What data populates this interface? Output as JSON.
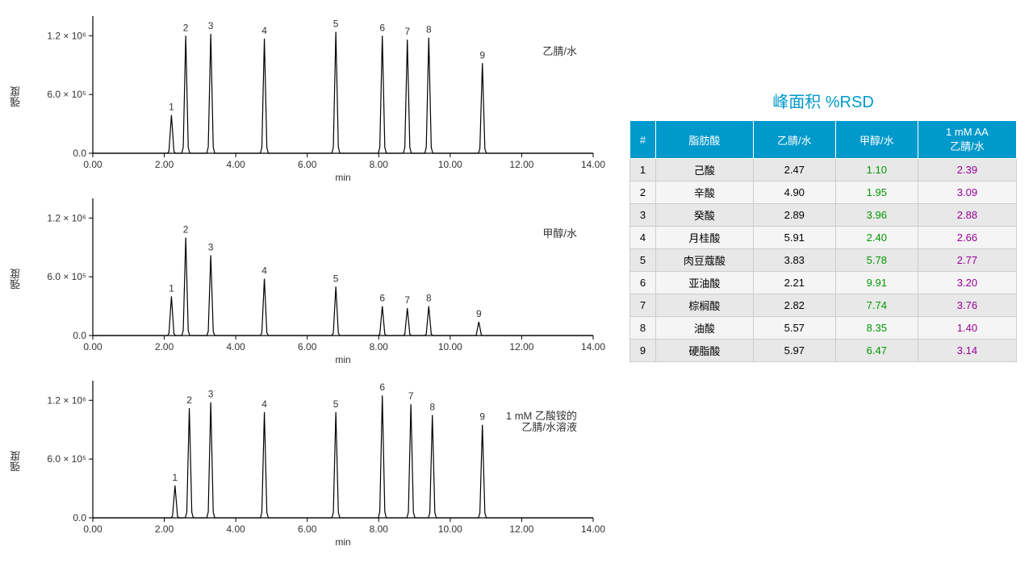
{
  "charts": [
    {
      "label_inside": "乙腈/水",
      "peaks": [
        {
          "x": 2.2,
          "h": 0.39
        },
        {
          "x": 2.6,
          "h": 1.2
        },
        {
          "x": 3.3,
          "h": 1.22
        },
        {
          "x": 4.8,
          "h": 1.17
        },
        {
          "x": 6.8,
          "h": 1.24
        },
        {
          "x": 8.1,
          "h": 1.2
        },
        {
          "x": 8.8,
          "h": 1.16
        },
        {
          "x": 9.4,
          "h": 1.18
        },
        {
          "x": 10.9,
          "h": 0.92
        }
      ]
    },
    {
      "label_inside": "甲醇/水",
      "peaks": [
        {
          "x": 2.2,
          "h": 0.4
        },
        {
          "x": 2.6,
          "h": 1.0
        },
        {
          "x": 3.3,
          "h": 0.82
        },
        {
          "x": 4.8,
          "h": 0.58
        },
        {
          "x": 6.8,
          "h": 0.5
        },
        {
          "x": 8.1,
          "h": 0.3
        },
        {
          "x": 8.8,
          "h": 0.28
        },
        {
          "x": 9.4,
          "h": 0.3
        },
        {
          "x": 10.8,
          "h": 0.14
        }
      ]
    },
    {
      "label_inside": "1 mM 乙酸铵的\n乙腈/水溶液",
      "peaks": [
        {
          "x": 2.3,
          "h": 0.33
        },
        {
          "x": 2.7,
          "h": 1.12
        },
        {
          "x": 3.3,
          "h": 1.18
        },
        {
          "x": 4.8,
          "h": 1.08
        },
        {
          "x": 6.8,
          "h": 1.08
        },
        {
          "x": 8.1,
          "h": 1.25
        },
        {
          "x": 8.9,
          "h": 1.16
        },
        {
          "x": 9.5,
          "h": 1.05
        },
        {
          "x": 10.9,
          "h": 0.95
        }
      ]
    }
  ],
  "chart_common": {
    "ylabel": "强度",
    "xlabel": "min",
    "xlim": [
      0,
      14
    ],
    "ylim": [
      0,
      1.4
    ],
    "xtick_step": 2.0,
    "ytick_vals": [
      0.0,
      0.6,
      1.2
    ],
    "ytick_labels": [
      "0.0",
      "6.0 × 10⁵",
      "1.2 × 10⁶"
    ],
    "peak_width": 0.14,
    "line_color": "#000000",
    "tick_fontsize": 12,
    "label_fontsize": 12
  },
  "table": {
    "title": "峰面积 %RSD",
    "columns": [
      "#",
      "脂肪酸",
      "乙腈/水",
      "甲醇/水",
      "1 mM AA\n乙腈/水"
    ],
    "col_colors": [
      null,
      null,
      null,
      "green",
      "purple"
    ],
    "rows": [
      [
        "1",
        "己酸",
        "2.47",
        "1.10",
        "2.39"
      ],
      [
        "2",
        "辛酸",
        "4.90",
        "1.95",
        "3.09"
      ],
      [
        "3",
        "癸酸",
        "2.89",
        "3.96",
        "2.88"
      ],
      [
        "4",
        "月桂酸",
        "5.91",
        "2.40",
        "2.66"
      ],
      [
        "5",
        "肉豆蔻酸",
        "3.83",
        "5.78",
        "2.77"
      ],
      [
        "6",
        "亚油酸",
        "2.21",
        "9.91",
        "3.20"
      ],
      [
        "7",
        "棕榈酸",
        "2.82",
        "7.74",
        "3.76"
      ],
      [
        "8",
        "油酸",
        "5.57",
        "8.35",
        "1.40"
      ],
      [
        "9",
        "硬脂酸",
        "5.97",
        "6.47",
        "3.14"
      ]
    ]
  }
}
